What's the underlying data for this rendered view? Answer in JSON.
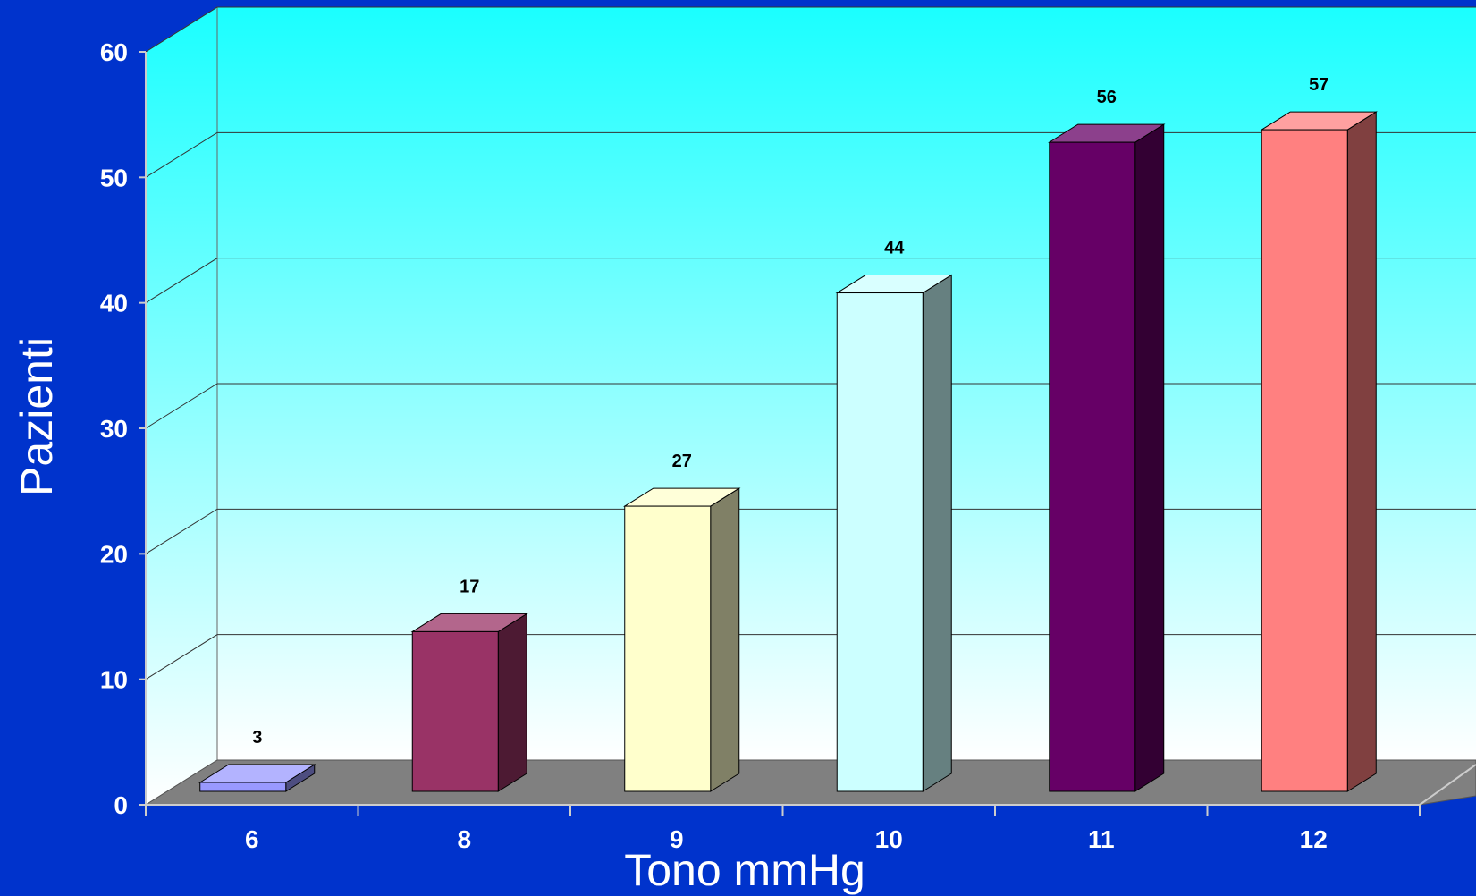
{
  "chart_data": {
    "type": "bar",
    "categories": [
      "6",
      "8",
      "9",
      "10",
      "11",
      "12"
    ],
    "values": [
      3,
      17,
      27,
      44,
      56,
      57
    ],
    "data_labels": [
      "3",
      "17",
      "27",
      "44",
      "56",
      "57"
    ],
    "title": "",
    "xlabel": "Tono mmHg",
    "ylabel": "Pazienti",
    "ylim": [
      0,
      60
    ],
    "yticks": [
      "0",
      "10",
      "20",
      "30",
      "40",
      "50",
      "60"
    ],
    "grid": true,
    "style": "3d-column",
    "colors": [
      "#9999ff",
      "#993366",
      "#ffffcc",
      "#ccffff",
      "#660066",
      "#ff8080"
    ],
    "background_color": "#0033cc",
    "wall_gradient": [
      "#1affff",
      "#ffffff"
    ],
    "floor_color": "#808080"
  }
}
